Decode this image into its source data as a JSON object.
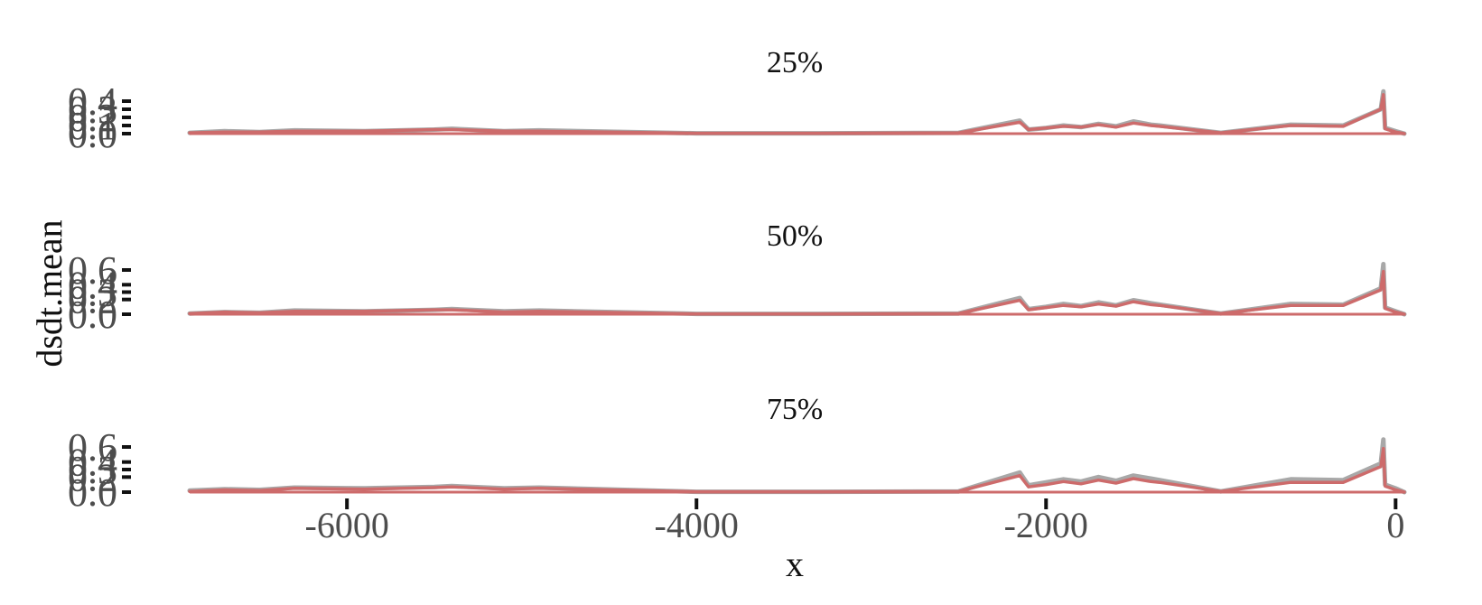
{
  "chart_data": {
    "type": "line",
    "xlabel": "x",
    "ylabel": "dsdt.mean",
    "xlim": [
      -6900,
      50
    ],
    "x_ticks": [
      -6000,
      -4000,
      -2000,
      0
    ],
    "x_tick_labels": [
      "-6000",
      "-4000",
      "-2000",
      "0"
    ],
    "grid": false,
    "legend": "none",
    "colors": {
      "primary": "#cd6b6b",
      "band": "#a8a8a8",
      "detail": "#111111"
    },
    "panels": [
      {
        "title": "25%",
        "ylim": [
          -0.02,
          0.45
        ],
        "y_ticks": [
          0.0,
          0.1,
          0.2,
          0.3,
          0.4
        ],
        "y_tick_labels": [
          "0.0",
          "0.1",
          "0.2",
          "0.3",
          "0.4"
        ],
        "series": [
          {
            "role": "band",
            "x": [
              -6900,
              -6700,
              -6500,
              -6300,
              -5900,
              -5500,
              -5400,
              -5100,
              -4900,
              -4000,
              -3300,
              -2500,
              -2150,
              -2100,
              -2000,
              -1900,
              -1800,
              -1700,
              -1600,
              -1500,
              -1400,
              -1350,
              -1000,
              -600,
              -300,
              -85,
              -70,
              -60,
              0,
              50
            ],
            "y": [
              0.01,
              0.03,
              0.02,
              0.04,
              0.03,
              0.05,
              0.06,
              0.03,
              0.04,
              0.005,
              0.005,
              0.01,
              0.16,
              0.05,
              0.07,
              0.1,
              0.08,
              0.12,
              0.09,
              0.15,
              0.11,
              0.1,
              0.01,
              0.11,
              0.1,
              0.3,
              0.52,
              0.07,
              0.03,
              0.0
            ]
          },
          {
            "role": "mean",
            "x": [
              -6900,
              -6700,
              -6500,
              -6300,
              -5900,
              -5500,
              -5400,
              -5100,
              -4900,
              -4000,
              -3300,
              -2500,
              -2150,
              -2100,
              -2000,
              -1900,
              -1800,
              -1700,
              -1600,
              -1500,
              -1400,
              -1350,
              -1000,
              -600,
              -300,
              -85,
              -70,
              -60,
              0,
              50
            ],
            "y": [
              0.01,
              0.02,
              0.02,
              0.03,
              0.03,
              0.05,
              0.05,
              0.03,
              0.03,
              0.005,
              0.005,
              0.01,
              0.14,
              0.05,
              0.07,
              0.09,
              0.08,
              0.11,
              0.08,
              0.13,
              0.1,
              0.09,
              0.01,
              0.1,
              0.09,
              0.3,
              0.48,
              0.06,
              0.02,
              0.0
            ]
          }
        ]
      },
      {
        "title": "50%",
        "ylim": [
          -0.02,
          0.62
        ],
        "y_ticks": [
          0.0,
          0.2,
          0.3,
          0.4,
          0.6
        ],
        "y_tick_labels": [
          "0.0",
          "0.2",
          "0.3",
          "0.4",
          "0.6"
        ],
        "series": [
          {
            "role": "band",
            "x": [
              -6900,
              -6700,
              -6500,
              -6300,
              -5900,
              -5500,
              -5400,
              -5100,
              -4900,
              -4000,
              -3300,
              -2500,
              -2150,
              -2100,
              -2000,
              -1900,
              -1800,
              -1700,
              -1600,
              -1500,
              -1400,
              -1350,
              -1000,
              -600,
              -300,
              -85,
              -70,
              -60,
              0,
              50
            ],
            "y": [
              0.01,
              0.03,
              0.02,
              0.05,
              0.04,
              0.06,
              0.07,
              0.04,
              0.05,
              0.005,
              0.005,
              0.01,
              0.22,
              0.07,
              0.1,
              0.14,
              0.11,
              0.16,
              0.12,
              0.19,
              0.15,
              0.13,
              0.01,
              0.14,
              0.13,
              0.35,
              0.68,
              0.09,
              0.04,
              0.0
            ]
          },
          {
            "role": "mean",
            "x": [
              -6900,
              -6700,
              -6500,
              -6300,
              -5900,
              -5500,
              -5400,
              -5100,
              -4900,
              -4000,
              -3300,
              -2500,
              -2150,
              -2100,
              -2000,
              -1900,
              -1800,
              -1700,
              -1600,
              -1500,
              -1400,
              -1350,
              -1000,
              -600,
              -300,
              -85,
              -70,
              -60,
              0,
              50
            ],
            "y": [
              0.01,
              0.03,
              0.02,
              0.04,
              0.04,
              0.06,
              0.06,
              0.03,
              0.04,
              0.005,
              0.005,
              0.01,
              0.19,
              0.06,
              0.09,
              0.12,
              0.1,
              0.14,
              0.11,
              0.17,
              0.13,
              0.12,
              0.01,
              0.12,
              0.12,
              0.33,
              0.58,
              0.08,
              0.03,
              0.0
            ]
          }
        ]
      },
      {
        "title": "75%",
        "ylim": [
          -0.02,
          0.62
        ],
        "y_ticks": [
          0.0,
          0.2,
          0.3,
          0.4,
          0.6
        ],
        "y_tick_labels": [
          "0.0",
          "0.2",
          "0.3",
          "0.4",
          "0.6"
        ],
        "series": [
          {
            "role": "band",
            "x": [
              -6900,
              -6700,
              -6500,
              -6300,
              -5900,
              -5500,
              -5400,
              -5100,
              -4900,
              -4000,
              -3300,
              -2500,
              -2150,
              -2100,
              -2000,
              -1900,
              -1800,
              -1700,
              -1600,
              -1500,
              -1400,
              -1350,
              -1000,
              -600,
              -300,
              -85,
              -70,
              -60,
              0,
              50
            ],
            "y": [
              0.02,
              0.04,
              0.03,
              0.06,
              0.05,
              0.07,
              0.08,
              0.05,
              0.06,
              0.005,
              0.005,
              0.01,
              0.26,
              0.09,
              0.13,
              0.17,
              0.14,
              0.2,
              0.15,
              0.22,
              0.18,
              0.16,
              0.01,
              0.17,
              0.16,
              0.38,
              0.7,
              0.1,
              0.05,
              0.0
            ]
          },
          {
            "role": "mean",
            "x": [
              -6900,
              -6700,
              -6500,
              -6300,
              -5900,
              -5500,
              -5400,
              -5100,
              -4900,
              -4000,
              -3300,
              -2500,
              -2150,
              -2100,
              -2000,
              -1900,
              -1800,
              -1700,
              -1600,
              -1500,
              -1400,
              -1350,
              -1000,
              -600,
              -300,
              -85,
              -70,
              -60,
              0,
              50
            ],
            "y": [
              0.01,
              0.03,
              0.02,
              0.05,
              0.04,
              0.06,
              0.07,
              0.04,
              0.05,
              0.005,
              0.005,
              0.01,
              0.22,
              0.07,
              0.1,
              0.14,
              0.11,
              0.16,
              0.12,
              0.18,
              0.14,
              0.13,
              0.01,
              0.13,
              0.13,
              0.34,
              0.58,
              0.08,
              0.03,
              0.0
            ]
          }
        ]
      }
    ]
  }
}
